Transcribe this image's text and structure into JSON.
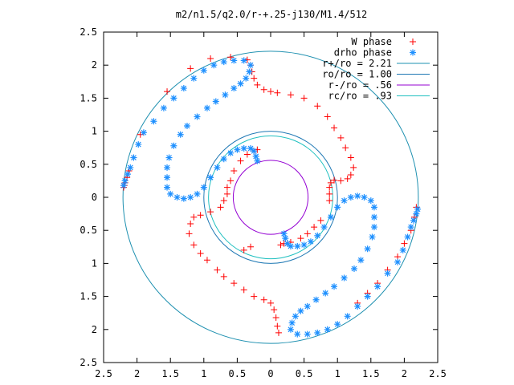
{
  "chart_data": {
    "type": "scatter",
    "title": "m2/n1.5/q2.0/r-+.25-j130/M1.4/512",
    "xlabel": "",
    "ylabel": "",
    "xlim": [
      -2.5,
      2.5
    ],
    "ylim": [
      -2.5,
      2.5
    ],
    "x_ticks": [
      "2.5",
      "2",
      "1.5",
      "1",
      "0.5",
      "0",
      "0.5",
      "1",
      "1.5",
      "2",
      "2.5"
    ],
    "y_ticks": [
      "2.5",
      "2",
      "1.5",
      "1",
      "0.5",
      "0",
      "0.5",
      "1",
      "1.5",
      "2",
      "2.5"
    ],
    "grid": false,
    "legend_position": "top-right",
    "legend": [
      {
        "label": "W phase",
        "marker": "plus",
        "color": "#ff0000"
      },
      {
        "label": "drho phase",
        "marker": "star",
        "color": "#1e90ff"
      },
      {
        "label": "r+/ro = 2.21",
        "marker": "line",
        "color": "#1e90b0"
      },
      {
        "label": "ro/ro = 1.00",
        "marker": "line",
        "color": "#1e78b4"
      },
      {
        "label": "r-/ro =  .56",
        "marker": "line",
        "color": "#9400d3"
      },
      {
        "label": "rc/ro =  .93",
        "marker": "line",
        "color": "#20c0c0"
      }
    ],
    "circles": [
      {
        "name": "r+/ro",
        "r": 2.21,
        "color": "#1e90b0"
      },
      {
        "name": "ro/ro",
        "r": 1.0,
        "color": "#1e78b4"
      },
      {
        "name": "r-/ro",
        "r": 0.56,
        "color": "#9400d3"
      },
      {
        "name": "rc/ro",
        "r": 0.93,
        "color": "#20c0c0"
      }
    ],
    "series": [
      {
        "name": "W phase",
        "marker": "plus",
        "color": "#ff0000",
        "points": [
          [
            -2.2,
            0.15
          ],
          [
            -2.19,
            0.18
          ],
          [
            -2.18,
            0.22
          ],
          [
            -2.15,
            0.3
          ],
          [
            -2.12,
            0.4
          ],
          [
            -2.05,
            0.6
          ],
          [
            -1.95,
            0.95
          ],
          [
            -1.55,
            1.6
          ],
          [
            -1.2,
            1.95
          ],
          [
            -0.9,
            2.1
          ],
          [
            -0.6,
            2.12
          ],
          [
            -0.35,
            2.08
          ],
          [
            -0.3,
            2.0
          ],
          [
            -0.28,
            1.9
          ],
          [
            -0.25,
            1.8
          ],
          [
            -0.2,
            1.7
          ],
          [
            -0.1,
            1.63
          ],
          [
            0.0,
            1.6
          ],
          [
            0.1,
            1.58
          ],
          [
            0.3,
            1.55
          ],
          [
            0.5,
            1.5
          ],
          [
            0.7,
            1.38
          ],
          [
            0.85,
            1.22
          ],
          [
            0.95,
            1.05
          ],
          [
            1.05,
            0.9
          ],
          [
            1.12,
            0.75
          ],
          [
            1.2,
            0.6
          ],
          [
            1.24,
            0.45
          ],
          [
            1.2,
            0.34
          ],
          [
            1.15,
            0.28
          ],
          [
            1.05,
            0.25
          ],
          [
            0.95,
            0.26
          ],
          [
            0.9,
            0.22
          ],
          [
            0.88,
            0.15
          ],
          [
            0.88,
            0.05
          ],
          [
            0.88,
            -0.05
          ],
          [
            -0.2,
            0.72
          ],
          [
            -0.25,
            0.7
          ],
          [
            -0.35,
            0.65
          ],
          [
            -0.45,
            0.55
          ],
          [
            -0.55,
            0.4
          ],
          [
            -0.6,
            0.25
          ],
          [
            -0.65,
            0.15
          ],
          [
            -0.65,
            0.05
          ],
          [
            -0.7,
            -0.05
          ],
          [
            -0.75,
            -0.15
          ],
          [
            -0.9,
            -0.22
          ],
          [
            -1.05,
            -0.27
          ],
          [
            -1.15,
            -0.3
          ],
          [
            -1.2,
            -0.4
          ],
          [
            -1.22,
            -0.55
          ],
          [
            -1.15,
            -0.72
          ],
          [
            -1.05,
            -0.85
          ],
          [
            -0.95,
            -0.95
          ],
          [
            -0.8,
            -1.1
          ],
          [
            -0.7,
            -1.2
          ],
          [
            -0.55,
            -1.3
          ],
          [
            -0.4,
            -1.4
          ],
          [
            -0.25,
            -1.5
          ],
          [
            -0.1,
            -1.55
          ],
          [
            0.0,
            -1.6
          ],
          [
            0.05,
            -1.7
          ],
          [
            0.08,
            -1.82
          ],
          [
            0.1,
            -1.95
          ],
          [
            0.12,
            -2.05
          ],
          [
            0.15,
            -0.72
          ],
          [
            0.2,
            -0.7
          ],
          [
            0.3,
            -0.68
          ],
          [
            0.45,
            -0.62
          ],
          [
            0.55,
            -0.55
          ],
          [
            0.65,
            -0.45
          ],
          [
            0.75,
            -0.35
          ],
          [
            1.3,
            -1.6
          ],
          [
            1.45,
            -1.45
          ],
          [
            1.6,
            -1.3
          ],
          [
            1.75,
            -1.1
          ],
          [
            1.9,
            -0.9
          ],
          [
            2.0,
            -0.7
          ],
          [
            2.1,
            -0.5
          ],
          [
            2.15,
            -0.3
          ],
          [
            2.18,
            -0.15
          ],
          [
            -0.3,
            -0.75
          ],
          [
            -0.4,
            -0.8
          ]
        ]
      },
      {
        "name": "drho phase",
        "marker": "star",
        "color": "#1e90ff",
        "points": [
          [
            -2.2,
            0.18
          ],
          [
            -2.18,
            0.25
          ],
          [
            -2.14,
            0.35
          ],
          [
            -2.1,
            0.45
          ],
          [
            -2.05,
            0.6
          ],
          [
            -1.98,
            0.8
          ],
          [
            -1.9,
            0.98
          ],
          [
            -1.75,
            1.15
          ],
          [
            -1.6,
            1.35
          ],
          [
            -1.45,
            1.5
          ],
          [
            -1.3,
            1.65
          ],
          [
            -1.15,
            1.8
          ],
          [
            -1.0,
            1.92
          ],
          [
            -0.85,
            2.0
          ],
          [
            -0.7,
            2.05
          ],
          [
            -0.55,
            2.07
          ],
          [
            -0.4,
            2.07
          ],
          [
            -0.3,
            2.0
          ],
          [
            -0.32,
            1.9
          ],
          [
            -0.37,
            1.8
          ],
          [
            -0.45,
            1.72
          ],
          [
            -0.55,
            1.65
          ],
          [
            -0.68,
            1.55
          ],
          [
            -0.82,
            1.45
          ],
          [
            -0.95,
            1.35
          ],
          [
            -1.1,
            1.22
          ],
          [
            -1.25,
            1.08
          ],
          [
            -1.35,
            0.95
          ],
          [
            -1.45,
            0.78
          ],
          [
            -1.52,
            0.6
          ],
          [
            -1.55,
            0.45
          ],
          [
            -1.55,
            0.3
          ],
          [
            -1.55,
            0.15
          ],
          [
            -1.5,
            0.05
          ],
          [
            -1.4,
            0.0
          ],
          [
            -1.3,
            -0.02
          ],
          [
            -1.2,
            0.0
          ],
          [
            -1.1,
            0.05
          ],
          [
            -1.0,
            0.15
          ],
          [
            -0.9,
            0.3
          ],
          [
            -0.8,
            0.45
          ],
          [
            -0.7,
            0.58
          ],
          [
            -0.6,
            0.67
          ],
          [
            -0.5,
            0.72
          ],
          [
            -0.4,
            0.74
          ],
          [
            -0.3,
            0.74
          ],
          [
            -0.25,
            0.7
          ],
          [
            -0.22,
            0.62
          ],
          [
            -0.2,
            0.55
          ],
          [
            0.2,
            -0.55
          ],
          [
            0.22,
            -0.62
          ],
          [
            0.25,
            -0.7
          ],
          [
            0.3,
            -0.74
          ],
          [
            0.4,
            -0.74
          ],
          [
            0.5,
            -0.72
          ],
          [
            0.6,
            -0.67
          ],
          [
            0.7,
            -0.58
          ],
          [
            0.8,
            -0.45
          ],
          [
            0.9,
            -0.3
          ],
          [
            1.0,
            -0.15
          ],
          [
            1.1,
            -0.05
          ],
          [
            1.2,
            0.0
          ],
          [
            1.3,
            0.02
          ],
          [
            1.4,
            0.0
          ],
          [
            1.5,
            -0.05
          ],
          [
            1.55,
            -0.15
          ],
          [
            1.55,
            -0.3
          ],
          [
            1.55,
            -0.45
          ],
          [
            1.52,
            -0.6
          ],
          [
            1.45,
            -0.78
          ],
          [
            1.35,
            -0.95
          ],
          [
            1.25,
            -1.08
          ],
          [
            1.1,
            -1.22
          ],
          [
            0.95,
            -1.35
          ],
          [
            0.82,
            -1.45
          ],
          [
            0.68,
            -1.55
          ],
          [
            0.55,
            -1.65
          ],
          [
            0.45,
            -1.72
          ],
          [
            0.37,
            -1.8
          ],
          [
            0.32,
            -1.9
          ],
          [
            0.3,
            -2.0
          ],
          [
            0.4,
            -2.07
          ],
          [
            0.55,
            -2.07
          ],
          [
            0.7,
            -2.05
          ],
          [
            0.85,
            -2.0
          ],
          [
            1.0,
            -1.92
          ],
          [
            1.15,
            -1.8
          ],
          [
            1.3,
            -1.65
          ],
          [
            1.45,
            -1.5
          ],
          [
            1.6,
            -1.35
          ],
          [
            1.75,
            -1.15
          ],
          [
            1.9,
            -0.98
          ],
          [
            1.98,
            -0.8
          ],
          [
            2.05,
            -0.6
          ],
          [
            2.1,
            -0.45
          ],
          [
            2.14,
            -0.35
          ],
          [
            2.18,
            -0.25
          ],
          [
            2.2,
            -0.18
          ]
        ]
      }
    ]
  }
}
